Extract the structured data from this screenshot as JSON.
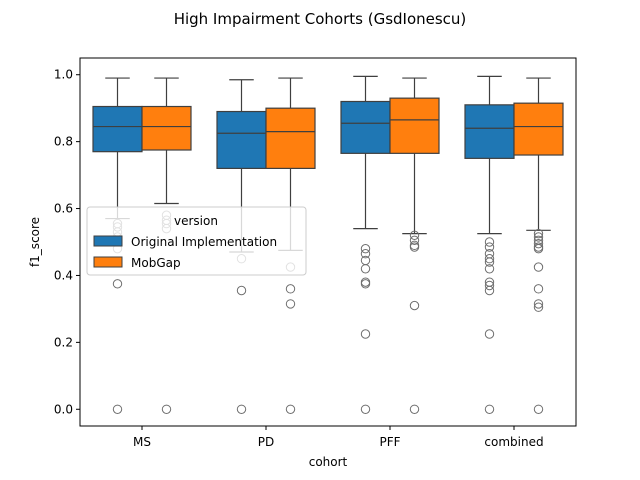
{
  "chart_data": {
    "type": "box",
    "title": "High Impairment Cohorts (GsdIonescu)",
    "xlabel": "cohort",
    "ylabel": "f1_score",
    "ylim": [
      -0.05,
      1.05
    ],
    "yticks": [
      0.0,
      0.2,
      0.4,
      0.6,
      0.8,
      1.0
    ],
    "ytick_labels": [
      "0.0",
      "0.2",
      "0.4",
      "0.6",
      "0.8",
      "1.0"
    ],
    "categories": [
      "MS",
      "PD",
      "PFF",
      "combined"
    ],
    "grid": false,
    "legend": {
      "title": "version",
      "placement": "center-left"
    },
    "series": [
      {
        "name": "Original Implementation",
        "color": "#1f77b4",
        "boxes": [
          {
            "whisker_low": 0.57,
            "q1": 0.77,
            "median": 0.845,
            "q3": 0.905,
            "whisker_high": 0.99,
            "outliers": [
              0.555,
              0.545,
              0.53,
              0.515,
              0.505,
              0.48,
              0.375,
              0.0
            ]
          },
          {
            "whisker_low": 0.47,
            "q1": 0.72,
            "median": 0.825,
            "q3": 0.89,
            "whisker_high": 0.985,
            "outliers": [
              0.45,
              0.355,
              0.0
            ]
          },
          {
            "whisker_low": 0.54,
            "q1": 0.765,
            "median": 0.855,
            "q3": 0.92,
            "whisker_high": 0.995,
            "outliers": [
              0.48,
              0.465,
              0.445,
              0.42,
              0.38,
              0.375,
              0.225,
              0.0
            ]
          },
          {
            "whisker_low": 0.525,
            "q1": 0.75,
            "median": 0.84,
            "q3": 0.91,
            "whisker_high": 0.995,
            "outliers": [
              0.5,
              0.485,
              0.465,
              0.45,
              0.44,
              0.42,
              0.38,
              0.37,
              0.355,
              0.225,
              0.0
            ]
          }
        ]
      },
      {
        "name": "MobGap",
        "color": "#ff7f0e",
        "boxes": [
          {
            "whisker_low": 0.615,
            "q1": 0.775,
            "median": 0.845,
            "q3": 0.905,
            "whisker_high": 0.99,
            "outliers": [
              0.58,
              0.565,
              0.555,
              0.54,
              0.0
            ]
          },
          {
            "whisker_low": 0.475,
            "q1": 0.72,
            "median": 0.83,
            "q3": 0.9,
            "whisker_high": 0.99,
            "outliers": [
              0.425,
              0.36,
              0.315,
              0.0
            ]
          },
          {
            "whisker_low": 0.525,
            "q1": 0.765,
            "median": 0.865,
            "q3": 0.93,
            "whisker_high": 0.99,
            "outliers": [
              0.52,
              0.505,
              0.49,
              0.485,
              0.31,
              0.0
            ]
          },
          {
            "whisker_low": 0.535,
            "q1": 0.76,
            "median": 0.845,
            "q3": 0.915,
            "whisker_high": 0.99,
            "outliers": [
              0.525,
              0.515,
              0.505,
              0.495,
              0.485,
              0.48,
              0.425,
              0.36,
              0.315,
              0.305,
              0.0
            ]
          }
        ]
      }
    ]
  }
}
